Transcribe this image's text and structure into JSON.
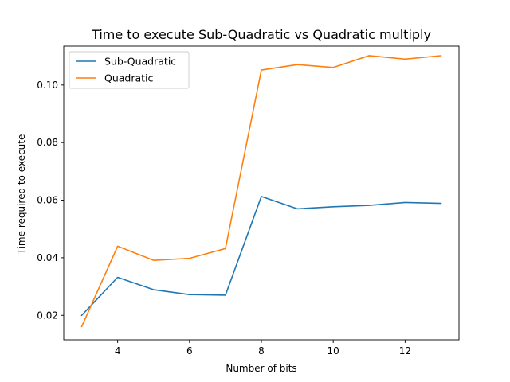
{
  "chart_data": {
    "type": "line",
    "title": "Time to execute Sub-Quadratic vs Quadratic multiply",
    "xlabel": "Number of bits",
    "ylabel": "Time required to execute",
    "xlim": [
      2.5,
      13.5
    ],
    "ylim": [
      0.0115,
      0.1135
    ],
    "xticks": [
      4,
      6,
      8,
      10,
      12
    ],
    "xtick_labels": [
      "4",
      "6",
      "8",
      "10",
      "12"
    ],
    "yticks": [
      0.02,
      0.04,
      0.06,
      0.08,
      0.1
    ],
    "ytick_labels": [
      "0.02",
      "0.04",
      "0.06",
      "0.08",
      "0.10"
    ],
    "grid": false,
    "legend": "upper-left",
    "x": [
      3,
      4,
      5,
      6,
      7,
      8,
      9,
      10,
      11,
      12,
      13
    ],
    "series": [
      {
        "name": "Sub-Quadratic",
        "color": "#1f77b4",
        "values": [
          0.02,
          0.0332,
          0.0289,
          0.0272,
          0.027,
          0.0613,
          0.057,
          0.0577,
          0.0582,
          0.0592,
          0.0589
        ]
      },
      {
        "name": "Quadratic",
        "color": "#ff7f0e",
        "values": [
          0.0161,
          0.044,
          0.0391,
          0.0398,
          0.0432,
          0.1052,
          0.1071,
          0.1061,
          0.1102,
          0.109,
          0.1102
        ]
      }
    ]
  }
}
